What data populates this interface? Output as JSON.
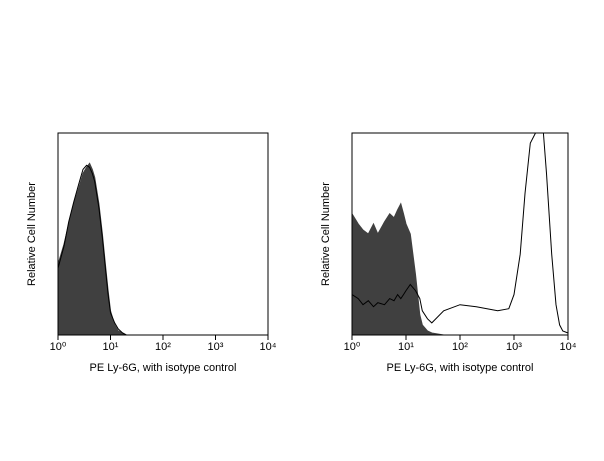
{
  "chart_data": [
    {
      "type": "area",
      "xlabel": "PE Ly-6G, with isotype control",
      "ylabel": "Relative Cell Number",
      "xscale": "log",
      "xlim": [
        1,
        10000
      ],
      "ylim": [
        0,
        100
      ],
      "xticks": [
        {
          "value": 1,
          "label": "10⁰"
        },
        {
          "value": 10,
          "label": "10¹"
        },
        {
          "value": 100,
          "label": "10²"
        },
        {
          "value": 1000,
          "label": "10³"
        },
        {
          "value": 10000,
          "label": "10⁴"
        }
      ],
      "x": [
        1,
        1.3,
        1.6,
        2,
        2.5,
        3,
        3.5,
        4,
        4.5,
        5,
        6,
        7,
        8,
        9,
        10,
        12,
        14,
        17,
        20,
        30,
        50,
        100,
        1000,
        10000
      ],
      "series": [
        {
          "color": "#404040",
          "filled": true,
          "values": [
            35,
            45,
            55,
            65,
            73,
            80,
            83,
            85,
            82,
            78,
            65,
            50,
            35,
            22,
            12,
            5,
            2,
            1,
            0,
            0,
            0,
            0,
            0,
            0
          ]
        },
        {
          "color": "#000000",
          "filled": false,
          "values": [
            33,
            44,
            56,
            66,
            75,
            82,
            84,
            83,
            80,
            76,
            63,
            48,
            33,
            20,
            11,
            6,
            3,
            1,
            0,
            0,
            0,
            0,
            0,
            0
          ]
        }
      ]
    },
    {
      "type": "area",
      "xlabel": "PE Ly-6G, with isotype control",
      "ylabel": "Relative Cell Number",
      "xscale": "log",
      "xlim": [
        1,
        10000
      ],
      "ylim": [
        0,
        100
      ],
      "xticks": [
        {
          "value": 1,
          "label": "10⁰"
        },
        {
          "value": 10,
          "label": "10¹"
        },
        {
          "value": 100,
          "label": "10²"
        },
        {
          "value": 1000,
          "label": "10³"
        },
        {
          "value": 10000,
          "label": "10⁴"
        }
      ],
      "x": [
        1,
        1.3,
        1.6,
        2,
        2.5,
        3,
        4,
        5,
        6,
        7,
        8,
        9,
        10,
        12,
        15,
        18,
        20,
        25,
        30,
        50,
        100,
        200,
        500,
        800,
        1000,
        1300,
        1600,
        2000,
        2500,
        3000,
        3500,
        4000,
        5000,
        6000,
        7000,
        8000,
        10000
      ],
      "series": [
        {
          "color": "#404040",
          "filled": true,
          "values": [
            60,
            55,
            52,
            50,
            55,
            50,
            56,
            60,
            58,
            62,
            65,
            60,
            55,
            50,
            30,
            10,
            5,
            2,
            1,
            0,
            0,
            0,
            0,
            0,
            0,
            0,
            0,
            0,
            0,
            0,
            0,
            0,
            0,
            0,
            0,
            0,
            0
          ]
        },
        {
          "color": "#000000",
          "filled": false,
          "values": [
            20,
            18,
            15,
            17,
            14,
            16,
            15,
            18,
            17,
            20,
            18,
            20,
            22,
            25,
            22,
            18,
            12,
            8,
            6,
            12,
            15,
            14,
            12,
            13,
            20,
            40,
            70,
            95,
            100,
            100,
            100,
            80,
            40,
            15,
            5,
            2,
            1
          ]
        }
      ]
    }
  ]
}
